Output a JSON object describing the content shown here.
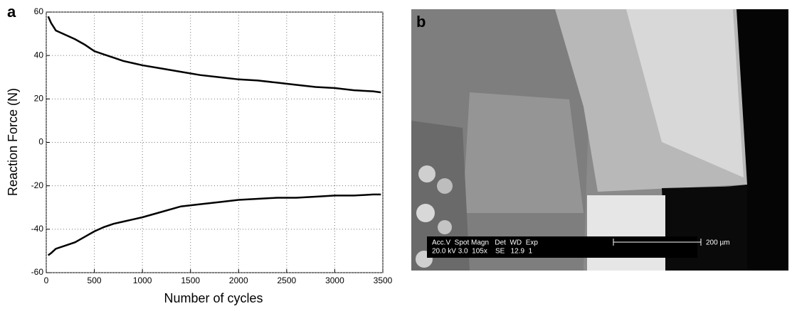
{
  "panel_labels": [
    "a",
    "b"
  ],
  "chart_data": {
    "type": "line",
    "x_label": "Number of cycles",
    "y_label": "Reaction Force (N)",
    "x": [
      20,
      50,
      100,
      200,
      300,
      400,
      500,
      600,
      700,
      800,
      900,
      1000,
      1200,
      1400,
      1600,
      1800,
      2000,
      2200,
      2400,
      2600,
      2800,
      3000,
      3200,
      3400,
      3480
    ],
    "series": [
      {
        "color": "#000000",
        "values": [
          58,
          55,
          51.5,
          49.5,
          47.5,
          45,
          42,
          40.5,
          39,
          37.5,
          36.5,
          35.5,
          34,
          32.5,
          31,
          30,
          29,
          28.5,
          27.5,
          26.5,
          25.5,
          25,
          24,
          23.5,
          23
        ]
      },
      {
        "color": "#000000",
        "values": [
          -52,
          -51,
          -49,
          -47.5,
          -46,
          -43.5,
          -41,
          -39,
          -37.5,
          -36.5,
          -35.5,
          -34.5,
          -32,
          -29.5,
          -28.5,
          -27.5,
          -26.5,
          -26,
          -25.5,
          -25.5,
          -25,
          -24.5,
          -24.5,
          -24,
          -24
        ]
      }
    ],
    "xlim": [
      0,
      3500
    ],
    "xticks": [
      0,
      500,
      1000,
      1500,
      2000,
      2500,
      3000,
      3500
    ],
    "ylim": [
      -60,
      60
    ],
    "yticks": [
      -60,
      -40,
      -20,
      0,
      20,
      40,
      60
    ],
    "grid": true
  },
  "image": {
    "info_header": "Acc.V  Spot Magn   Det  WD  Exp",
    "info_values": "20.0 kV 3.0  105x    SE   12.9  1",
    "scale_label": "200 µm"
  }
}
